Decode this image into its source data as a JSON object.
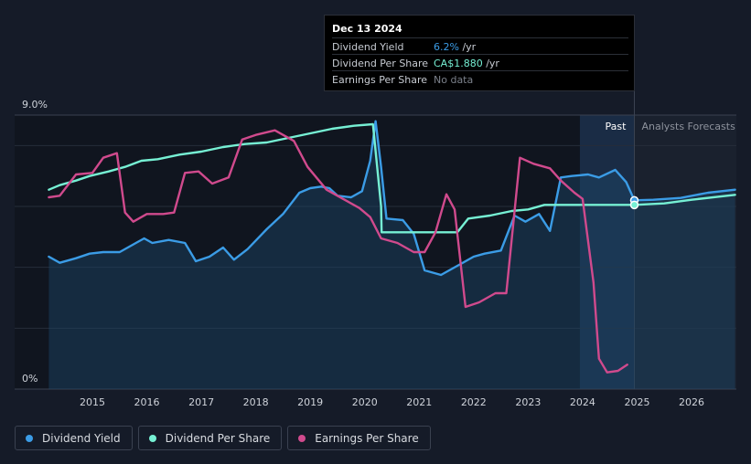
{
  "tooltip": {
    "date": "Dec 13 2024",
    "rows": [
      {
        "label": "Dividend Yield",
        "value": "6.2%",
        "unit": " /yr"
      },
      {
        "label": "Dividend Per Share",
        "value": "CA$1.880",
        "unit": " /yr"
      },
      {
        "label": "Earnings Per Share",
        "value": "No data",
        "unit": ""
      }
    ]
  },
  "labels": {
    "past": "Past",
    "forecast": "Analysts Forecasts"
  },
  "legend": [
    {
      "label": "Dividend Yield",
      "color": "#3b9ce6"
    },
    {
      "label": "Dividend Per Share",
      "color": "#76f0d4"
    },
    {
      "label": "Earnings Per Share",
      "color": "#d04a8d"
    }
  ],
  "chart_data": {
    "type": "line",
    "x_range": [
      2014.2,
      2026.8
    ],
    "y_range": [
      0,
      9
    ],
    "y_ticks": [
      {
        "v": 9,
        "label": "9.0%"
      },
      {
        "v": 0,
        "label": "0%"
      }
    ],
    "x_ticks": [
      "2015",
      "2016",
      "2017",
      "2018",
      "2019",
      "2020",
      "2021",
      "2022",
      "2023",
      "2024",
      "2025",
      "2026"
    ],
    "forecast_start": 2024.95,
    "past_band_start": 2023.95,
    "series": [
      {
        "name": "Dividend Yield",
        "color": "#3b9ce6",
        "filled": true,
        "points": [
          [
            2014.2,
            4.35
          ],
          [
            2014.4,
            4.15
          ],
          [
            2014.7,
            4.3
          ],
          [
            2014.95,
            4.45
          ],
          [
            2015.2,
            4.5
          ],
          [
            2015.5,
            4.5
          ],
          [
            2015.8,
            4.8
          ],
          [
            2015.95,
            4.95
          ],
          [
            2016.1,
            4.8
          ],
          [
            2016.4,
            4.9
          ],
          [
            2016.7,
            4.8
          ],
          [
            2016.9,
            4.2
          ],
          [
            2017.15,
            4.35
          ],
          [
            2017.4,
            4.65
          ],
          [
            2017.6,
            4.25
          ],
          [
            2017.85,
            4.6
          ],
          [
            2018.2,
            5.25
          ],
          [
            2018.5,
            5.75
          ],
          [
            2018.8,
            6.45
          ],
          [
            2019.0,
            6.6
          ],
          [
            2019.2,
            6.65
          ],
          [
            2019.35,
            6.6
          ],
          [
            2019.5,
            6.35
          ],
          [
            2019.75,
            6.3
          ],
          [
            2019.95,
            6.5
          ],
          [
            2020.1,
            7.5
          ],
          [
            2020.2,
            8.8
          ],
          [
            2020.3,
            7.3
          ],
          [
            2020.4,
            5.6
          ],
          [
            2020.7,
            5.55
          ],
          [
            2020.9,
            5.1
          ],
          [
            2021.1,
            3.9
          ],
          [
            2021.4,
            3.75
          ],
          [
            2021.7,
            4.05
          ],
          [
            2022.0,
            4.35
          ],
          [
            2022.2,
            4.45
          ],
          [
            2022.5,
            4.55
          ],
          [
            2022.75,
            5.7
          ],
          [
            2022.95,
            5.5
          ],
          [
            2023.2,
            5.75
          ],
          [
            2023.4,
            5.2
          ],
          [
            2023.6,
            6.95
          ],
          [
            2023.8,
            7.0
          ],
          [
            2024.1,
            7.05
          ],
          [
            2024.3,
            6.95
          ],
          [
            2024.6,
            7.2
          ],
          [
            2024.8,
            6.8
          ],
          [
            2024.95,
            6.2
          ],
          [
            2025.3,
            6.22
          ],
          [
            2025.8,
            6.28
          ],
          [
            2026.3,
            6.45
          ],
          [
            2026.8,
            6.55
          ]
        ]
      },
      {
        "name": "Dividend Per Share",
        "color": "#76f0d4",
        "filled": false,
        "points": [
          [
            2014.2,
            6.55
          ],
          [
            2014.4,
            6.7
          ],
          [
            2014.7,
            6.85
          ],
          [
            2014.95,
            7.0
          ],
          [
            2015.3,
            7.15
          ],
          [
            2015.6,
            7.3
          ],
          [
            2015.9,
            7.5
          ],
          [
            2016.2,
            7.55
          ],
          [
            2016.6,
            7.7
          ],
          [
            2017.0,
            7.8
          ],
          [
            2017.4,
            7.95
          ],
          [
            2017.8,
            8.05
          ],
          [
            2018.2,
            8.1
          ],
          [
            2018.6,
            8.25
          ],
          [
            2019.0,
            8.4
          ],
          [
            2019.4,
            8.55
          ],
          [
            2019.8,
            8.65
          ],
          [
            2020.15,
            8.7
          ],
          [
            2020.3,
            6.0
          ],
          [
            2020.31,
            5.15
          ],
          [
            2020.7,
            5.15
          ],
          [
            2021.2,
            5.15
          ],
          [
            2021.7,
            5.15
          ],
          [
            2021.9,
            5.6
          ],
          [
            2022.3,
            5.7
          ],
          [
            2022.7,
            5.85
          ],
          [
            2023.0,
            5.9
          ],
          [
            2023.3,
            6.05
          ],
          [
            2023.6,
            6.05
          ],
          [
            2024.0,
            6.05
          ],
          [
            2024.5,
            6.05
          ],
          [
            2024.95,
            6.05
          ],
          [
            2025.5,
            6.1
          ],
          [
            2026.0,
            6.22
          ],
          [
            2026.8,
            6.38
          ]
        ]
      },
      {
        "name": "Earnings Per Share",
        "color": "#d04a8d",
        "filled": false,
        "points": [
          [
            2014.2,
            6.3
          ],
          [
            2014.4,
            6.35
          ],
          [
            2014.7,
            7.05
          ],
          [
            2015.0,
            7.1
          ],
          [
            2015.2,
            7.6
          ],
          [
            2015.45,
            7.75
          ],
          [
            2015.6,
            5.8
          ],
          [
            2015.75,
            5.5
          ],
          [
            2016.0,
            5.75
          ],
          [
            2016.3,
            5.75
          ],
          [
            2016.5,
            5.8
          ],
          [
            2016.7,
            7.1
          ],
          [
            2016.95,
            7.15
          ],
          [
            2017.2,
            6.75
          ],
          [
            2017.5,
            6.95
          ],
          [
            2017.75,
            8.2
          ],
          [
            2018.0,
            8.35
          ],
          [
            2018.35,
            8.5
          ],
          [
            2018.7,
            8.15
          ],
          [
            2018.95,
            7.3
          ],
          [
            2019.3,
            6.55
          ],
          [
            2019.6,
            6.25
          ],
          [
            2019.9,
            5.95
          ],
          [
            2020.1,
            5.65
          ],
          [
            2020.3,
            4.95
          ],
          [
            2020.6,
            4.8
          ],
          [
            2020.9,
            4.5
          ],
          [
            2021.1,
            4.5
          ],
          [
            2021.3,
            5.15
          ],
          [
            2021.5,
            6.4
          ],
          [
            2021.65,
            5.9
          ],
          [
            2021.85,
            2.7
          ],
          [
            2022.1,
            2.85
          ],
          [
            2022.4,
            3.15
          ],
          [
            2022.6,
            3.15
          ],
          [
            2022.85,
            7.6
          ],
          [
            2023.1,
            7.4
          ],
          [
            2023.4,
            7.25
          ],
          [
            2023.6,
            6.85
          ],
          [
            2023.85,
            6.45
          ],
          [
            2024.0,
            6.25
          ],
          [
            2024.2,
            3.5
          ],
          [
            2024.3,
            1.0
          ],
          [
            2024.45,
            0.55
          ],
          [
            2024.65,
            0.6
          ],
          [
            2024.82,
            0.8
          ]
        ]
      }
    ],
    "markers": [
      {
        "series": "Dividend Yield",
        "x": 2024.95,
        "y": 6.2
      },
      {
        "series": "Dividend Per Share",
        "x": 2024.95,
        "y": 6.05
      }
    ]
  }
}
